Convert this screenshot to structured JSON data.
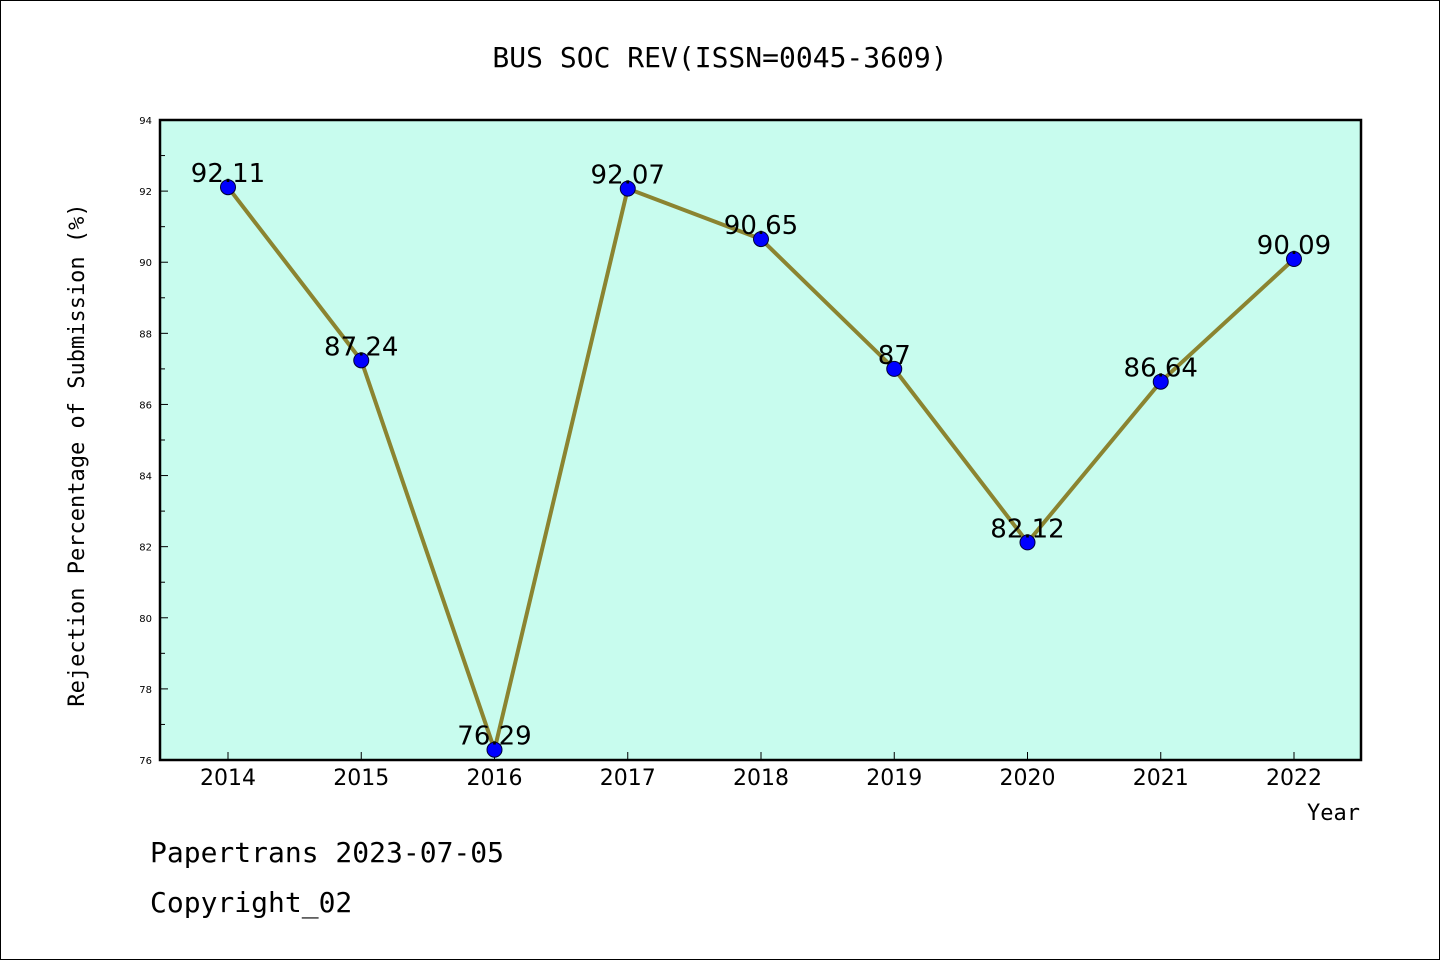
{
  "chart_data": {
    "type": "line",
    "title": "BUS SOC REV(ISSN=0045-3609)",
    "xlabel": "Year",
    "ylabel": "Rejection Percentage of Submission (%)",
    "x": [
      "2014",
      "2015",
      "2016",
      "2017",
      "2018",
      "2019",
      "2020",
      "2021",
      "2022"
    ],
    "series": [
      {
        "values": [
          92.11,
          87.24,
          76.29,
          92.07,
          90.65,
          87,
          82.12,
          86.64,
          90.09
        ],
        "labels": [
          "92.11",
          "87.24",
          "76.29",
          "92.07",
          "90.65",
          "87",
          "82.12",
          "86.64",
          "90.09"
        ]
      }
    ],
    "ylim": [
      76,
      94
    ],
    "yticks": [
      76,
      78,
      80,
      82,
      84,
      86,
      88,
      90,
      92,
      94
    ],
    "grid": false,
    "colors": {
      "plot_background": "#c8fcee",
      "line": "#8b8430",
      "marker": "#0000ff"
    }
  },
  "footer": {
    "line1": "Papertrans 2023-07-05",
    "line2": "Copyright_02"
  }
}
